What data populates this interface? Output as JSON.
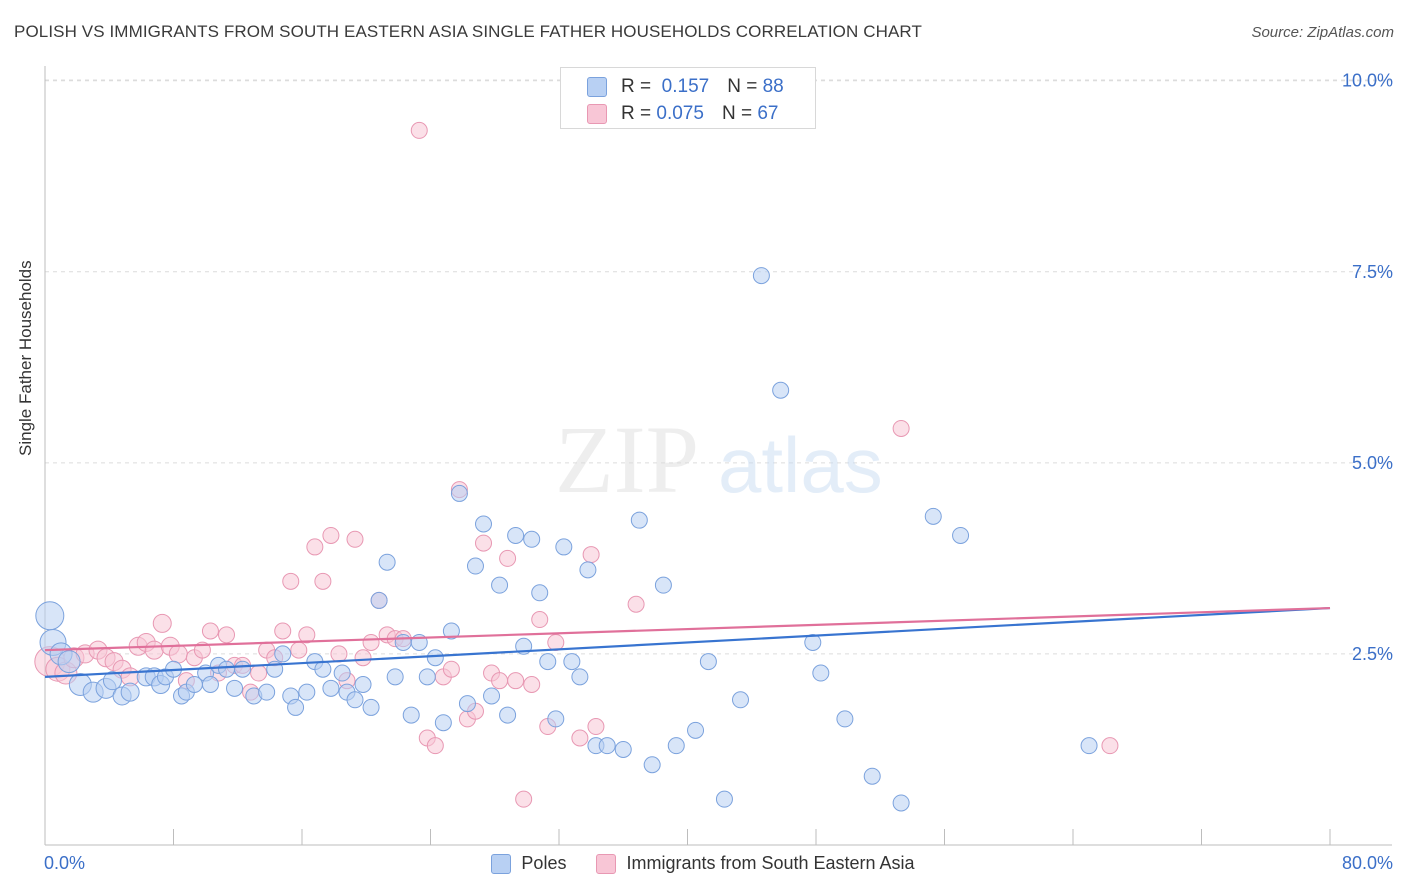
{
  "title": "POLISH VS IMMIGRANTS FROM SOUTH EASTERN ASIA SINGLE FATHER HOUSEHOLDS CORRELATION CHART",
  "source": "Source: ZipAtlas.com",
  "watermark": {
    "zip": "ZIP",
    "atlas": "atlas"
  },
  "legend": {
    "rows": [
      {
        "r_label": "R =",
        "r_value": "0.157",
        "n_label": "N =",
        "n_value": "88"
      },
      {
        "r_label": "R =",
        "r_value": "0.075",
        "n_label": "N =",
        "n_value": "67"
      }
    ]
  },
  "colors": {
    "blue_fill": "#b8d0f3",
    "blue_stroke": "#7ba2dd",
    "blue_line": "#3874d0",
    "pink_fill": "#f8c6d6",
    "pink_stroke": "#e898b3",
    "pink_line": "#e0709a",
    "tick_label": "#3b6fc8",
    "grid": "#dcdcdc"
  },
  "chart_data": {
    "type": "scatter",
    "xlabel": "",
    "ylabel": "Single Father Households",
    "xlim": [
      0,
      80
    ],
    "ylim": [
      0,
      10.2
    ],
    "x_tick_labels": [
      "0.0%",
      "80.0%"
    ],
    "y_ticks": [
      2.5,
      5.0,
      7.5,
      10.0
    ],
    "y_tick_labels": [
      "2.5%",
      "5.0%",
      "7.5%",
      "10.0%"
    ],
    "grid": "horizontal dashed",
    "legend_position": "bottom",
    "series": [
      {
        "name": "Poles",
        "trend": {
          "x": [
            0,
            80
          ],
          "y": [
            2.2,
            3.1
          ]
        },
        "points": [
          [
            0.3,
            3.0,
            14
          ],
          [
            0.5,
            2.65,
            13
          ],
          [
            1.0,
            2.5,
            11
          ],
          [
            1.5,
            2.4,
            11
          ],
          [
            2.2,
            2.1,
            11
          ],
          [
            3.0,
            2.0,
            10
          ],
          [
            3.8,
            2.05,
            10
          ],
          [
            4.2,
            2.15,
            9
          ],
          [
            4.8,
            1.95,
            9
          ],
          [
            5.3,
            2.0,
            9
          ],
          [
            6.3,
            2.2,
            9
          ],
          [
            6.8,
            2.2,
            9
          ],
          [
            7.2,
            2.1,
            9
          ],
          [
            7.5,
            2.2,
            8
          ],
          [
            8.0,
            2.3,
            8
          ],
          [
            8.5,
            1.95,
            8
          ],
          [
            8.8,
            2.0,
            8
          ],
          [
            9.3,
            2.1,
            8
          ],
          [
            10.0,
            2.25,
            8
          ],
          [
            10.3,
            2.1,
            8
          ],
          [
            10.8,
            2.35,
            8
          ],
          [
            11.3,
            2.3,
            8
          ],
          [
            11.8,
            2.05,
            8
          ],
          [
            12.3,
            2.3,
            8
          ],
          [
            13.0,
            1.95,
            8
          ],
          [
            13.8,
            2.0,
            8
          ],
          [
            14.3,
            2.3,
            8
          ],
          [
            14.8,
            2.5,
            8
          ],
          [
            15.3,
            1.95,
            8
          ],
          [
            15.6,
            1.8,
            8
          ],
          [
            16.3,
            2.0,
            8
          ],
          [
            16.8,
            2.4,
            8
          ],
          [
            17.3,
            2.3,
            8
          ],
          [
            17.8,
            2.05,
            8
          ],
          [
            18.5,
            2.25,
            8
          ],
          [
            18.8,
            2.0,
            8
          ],
          [
            19.3,
            1.9,
            8
          ],
          [
            19.8,
            2.1,
            8
          ],
          [
            20.3,
            1.8,
            8
          ],
          [
            20.8,
            3.2,
            8
          ],
          [
            21.3,
            3.7,
            8
          ],
          [
            21.8,
            2.2,
            8
          ],
          [
            22.3,
            2.65,
            8
          ],
          [
            22.8,
            1.7,
            8
          ],
          [
            23.3,
            2.65,
            8
          ],
          [
            23.8,
            2.2,
            8
          ],
          [
            24.3,
            2.45,
            8
          ],
          [
            24.8,
            1.6,
            8
          ],
          [
            25.3,
            2.8,
            8
          ],
          [
            25.8,
            4.6,
            8
          ],
          [
            26.3,
            1.85,
            8
          ],
          [
            26.8,
            3.65,
            8
          ],
          [
            27.3,
            4.2,
            8
          ],
          [
            27.8,
            1.95,
            8
          ],
          [
            28.3,
            3.4,
            8
          ],
          [
            28.8,
            1.7,
            8
          ],
          [
            29.3,
            4.05,
            8
          ],
          [
            29.8,
            2.6,
            8
          ],
          [
            30.3,
            4.0,
            8
          ],
          [
            30.8,
            3.3,
            8
          ],
          [
            31.3,
            2.4,
            8
          ],
          [
            31.8,
            1.65,
            8
          ],
          [
            32.3,
            3.9,
            8
          ],
          [
            32.8,
            2.4,
            8
          ],
          [
            33.3,
            2.2,
            8
          ],
          [
            33.8,
            3.6,
            8
          ],
          [
            34.3,
            1.3,
            8
          ],
          [
            35.0,
            1.3,
            8
          ],
          [
            36.0,
            1.25,
            8
          ],
          [
            37.0,
            4.25,
            8
          ],
          [
            37.8,
            1.05,
            8
          ],
          [
            38.5,
            3.4,
            8
          ],
          [
            39.3,
            1.3,
            8
          ],
          [
            40.5,
            1.5,
            8
          ],
          [
            41.3,
            2.4,
            8
          ],
          [
            42.3,
            0.6,
            8
          ],
          [
            43.3,
            1.9,
            8
          ],
          [
            44.6,
            7.45,
            8
          ],
          [
            45.8,
            5.95,
            8
          ],
          [
            47.8,
            2.65,
            8
          ],
          [
            48.3,
            2.25,
            8
          ],
          [
            49.8,
            1.65,
            8
          ],
          [
            51.5,
            0.9,
            8
          ],
          [
            53.3,
            0.55,
            8
          ],
          [
            55.3,
            4.3,
            8
          ],
          [
            57.0,
            4.05,
            8
          ],
          [
            65.0,
            1.3,
            8
          ]
        ]
      },
      {
        "name": "Immigrants from South Eastern Asia",
        "trend": {
          "x": [
            0,
            80
          ],
          "y": [
            2.55,
            3.1
          ]
        },
        "points": [
          [
            0.3,
            2.4,
            15
          ],
          [
            0.8,
            2.3,
            12
          ],
          [
            1.3,
            2.25,
            11
          ],
          [
            1.8,
            2.45,
            10
          ],
          [
            2.5,
            2.5,
            9
          ],
          [
            3.3,
            2.55,
            9
          ],
          [
            3.8,
            2.45,
            9
          ],
          [
            4.3,
            2.4,
            9
          ],
          [
            4.8,
            2.3,
            9
          ],
          [
            5.3,
            2.2,
            9
          ],
          [
            5.8,
            2.6,
            9
          ],
          [
            6.3,
            2.65,
            9
          ],
          [
            6.8,
            2.55,
            9
          ],
          [
            7.3,
            2.9,
            9
          ],
          [
            7.8,
            2.6,
            9
          ],
          [
            8.3,
            2.5,
            9
          ],
          [
            8.8,
            2.15,
            8
          ],
          [
            9.3,
            2.45,
            8
          ],
          [
            9.8,
            2.55,
            8
          ],
          [
            10.3,
            2.8,
            8
          ],
          [
            10.8,
            2.25,
            8
          ],
          [
            11.3,
            2.75,
            8
          ],
          [
            11.8,
            2.35,
            8
          ],
          [
            12.3,
            2.35,
            8
          ],
          [
            12.8,
            2.0,
            8
          ],
          [
            13.3,
            2.25,
            8
          ],
          [
            13.8,
            2.55,
            8
          ],
          [
            14.3,
            2.45,
            8
          ],
          [
            14.8,
            2.8,
            8
          ],
          [
            15.3,
            3.45,
            8
          ],
          [
            15.8,
            2.55,
            8
          ],
          [
            16.3,
            2.75,
            8
          ],
          [
            16.8,
            3.9,
            8
          ],
          [
            17.3,
            3.45,
            8
          ],
          [
            17.8,
            4.05,
            8
          ],
          [
            18.3,
            2.5,
            8
          ],
          [
            18.8,
            2.15,
            8
          ],
          [
            19.3,
            4.0,
            8
          ],
          [
            19.8,
            2.45,
            8
          ],
          [
            20.3,
            2.65,
            8
          ],
          [
            20.8,
            3.2,
            8
          ],
          [
            21.3,
            2.75,
            8
          ],
          [
            21.8,
            2.7,
            8
          ],
          [
            22.3,
            2.7,
            8
          ],
          [
            23.3,
            9.35,
            8
          ],
          [
            23.8,
            1.4,
            8
          ],
          [
            24.3,
            1.3,
            8
          ],
          [
            24.8,
            2.2,
            8
          ],
          [
            25.3,
            2.3,
            8
          ],
          [
            25.8,
            4.65,
            8
          ],
          [
            26.3,
            1.65,
            8
          ],
          [
            26.8,
            1.75,
            8
          ],
          [
            27.3,
            3.95,
            8
          ],
          [
            27.8,
            2.25,
            8
          ],
          [
            28.3,
            2.15,
            8
          ],
          [
            28.8,
            3.75,
            8
          ],
          [
            29.3,
            2.15,
            8
          ],
          [
            29.8,
            0.6,
            8
          ],
          [
            30.3,
            2.1,
            8
          ],
          [
            30.8,
            2.95,
            8
          ],
          [
            31.3,
            1.55,
            8
          ],
          [
            31.8,
            2.65,
            8
          ],
          [
            33.3,
            1.4,
            8
          ],
          [
            34.0,
            3.8,
            8
          ],
          [
            34.3,
            1.55,
            8
          ],
          [
            36.8,
            3.15,
            8
          ],
          [
            53.3,
            5.45,
            8
          ],
          [
            66.3,
            1.3,
            8
          ]
        ]
      }
    ]
  }
}
